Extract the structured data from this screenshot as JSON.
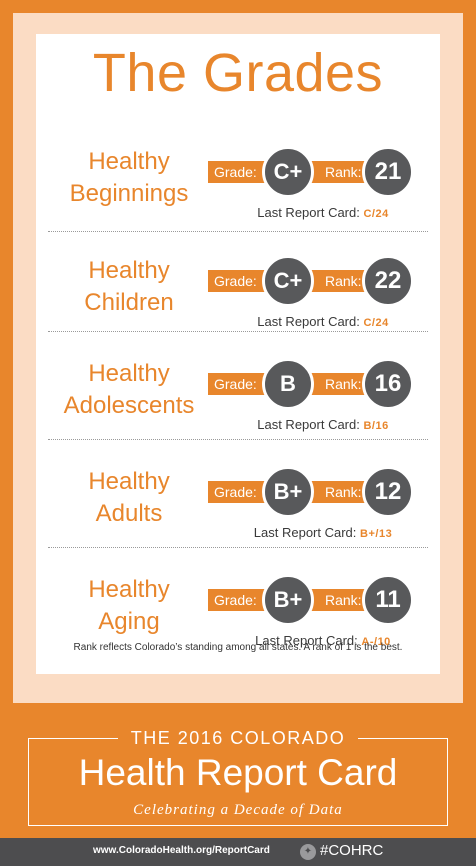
{
  "title": "The Grades",
  "labels": {
    "grade": "Grade:",
    "rank": "Rank:",
    "last": "Last Report Card:"
  },
  "rows": [
    {
      "line1": "Healthy",
      "line2": "Beginnings",
      "grade": "C+",
      "rank": "21",
      "last": "C/24"
    },
    {
      "line1": "Healthy",
      "line2": "Children",
      "grade": "C+",
      "rank": "22",
      "last": "C/24"
    },
    {
      "line1": "Healthy",
      "line2": "Adolescents",
      "grade": "B",
      "rank": "16",
      "last": "B/16"
    },
    {
      "line1": "Healthy",
      "line2": "Adults",
      "grade": "B+",
      "rank": "12",
      "last": "B+/13"
    },
    {
      "line1": "Healthy",
      "line2": "Aging",
      "grade": "B+",
      "rank": "11",
      "last": "A-/10"
    }
  ],
  "footnote": "Rank reflects Colorado’s standing among all states. A rank of 1 is the best.",
  "banner": {
    "top": "THE 2016 COLORADO",
    "title": "Health Report Card",
    "subtitle": "Celebrating a Decade of Data"
  },
  "footer": {
    "url": "www.ColoradoHealth.org/ReportCard",
    "hashtag": "#COHRC",
    "icon": "twitter-bird-icon"
  },
  "colors": {
    "accent": "#e8862c",
    "badge": "#58595b",
    "footer": "#4d4d4f"
  }
}
